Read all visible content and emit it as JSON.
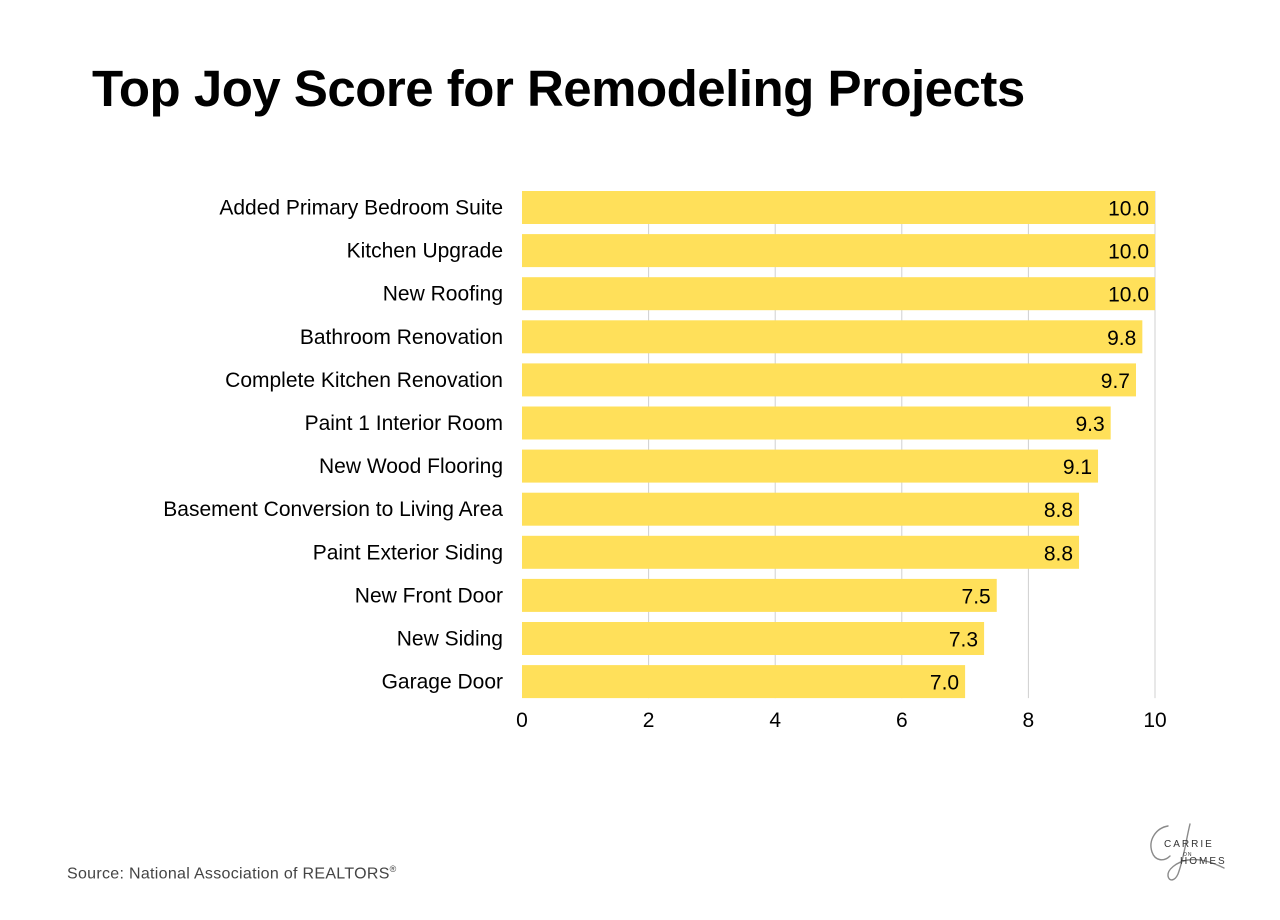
{
  "title": "Top Joy Score for Remodeling Projects",
  "source": {
    "text": "Source: National Association of REALTORS",
    "mark": "®"
  },
  "logo": {
    "line1": "CARRIE",
    "line2": "ON",
    "line3": "HOMES"
  },
  "colors": {
    "bar": "#FFE05A",
    "grid": "#D0D0D0",
    "text": "#000000",
    "source": "#444444"
  },
  "chart_data": {
    "type": "bar",
    "orientation": "horizontal",
    "title": "Top Joy Score for Remodeling Projects",
    "categories": [
      "Added Primary Bedroom Suite",
      "Kitchen Upgrade",
      "New Roofing",
      "Bathroom Renovation",
      "Complete Kitchen Renovation",
      "Paint 1 Interior Room",
      "New Wood Flooring",
      "Basement Conversion to Living Area",
      "Paint Exterior Siding",
      "New Front Door",
      "New Siding",
      "Garage Door"
    ],
    "values": [
      10.0,
      10.0,
      10.0,
      9.8,
      9.7,
      9.3,
      9.1,
      8.8,
      8.8,
      7.5,
      7.3,
      7.0
    ],
    "data_labels": [
      "10.0",
      "10.0",
      "10.0",
      "9.8",
      "9.7",
      "9.3",
      "9.1",
      "8.8",
      "8.8",
      "7.5",
      "7.3",
      "7.0"
    ],
    "xlim": [
      0,
      10
    ],
    "x_ticks": [
      0,
      2,
      4,
      6,
      8,
      10
    ],
    "xlabel": "",
    "ylabel": "",
    "grid": "vertical"
  }
}
